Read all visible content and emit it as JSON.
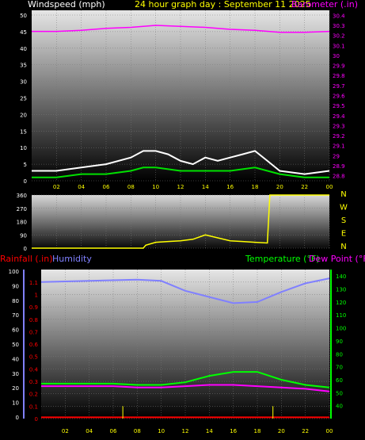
{
  "colors": {
    "wind": "#ffffff",
    "wind_avg": "#00e000",
    "barometer": "#ff00ff",
    "direction": "#ffff00",
    "rain": "#ff0000",
    "humidity": "#8080ff",
    "temperature": "#00ff00",
    "dewpoint": "#ff00ff",
    "axis_yellow": "#ffff00"
  },
  "header": {
    "left_label": "Windspeed (mph)",
    "title": "24 hour graph day : September 11 2025",
    "right_label": "Barometer (.in)"
  },
  "direction_panel": {
    "letters": [
      "N",
      "W",
      "S",
      "E",
      "N"
    ]
  },
  "bottom_header": {
    "rain_label": "Rainfall (.in)",
    "humidity_label": "Humidity",
    "temp_label": "Temperature (°F)",
    "dew_label": "Dew Point (°F)"
  },
  "chart_data": [
    {
      "type": "line",
      "x_ticks": [
        "02",
        "04",
        "06",
        "08",
        "10",
        "12",
        "14",
        "16",
        "18",
        "20",
        "22",
        "00"
      ],
      "left_axis": {
        "ticks": [
          "0",
          "5",
          "10",
          "15",
          "20",
          "25",
          "30",
          "35",
          "40",
          "45",
          "50"
        ],
        "ylim": [
          0,
          50
        ]
      },
      "right_axis": {
        "ticks": [
          "28.8",
          "28.9",
          "29",
          "29.1",
          "29.2",
          "29.3",
          "29.4",
          "29.5",
          "29.6",
          "29.7",
          "29.8",
          "29.9",
          "30",
          "30.1",
          "30.2",
          "30.3",
          "30.4"
        ],
        "ylim": [
          28.75,
          30.45
        ]
      },
      "series": [
        {
          "axis": "right",
          "x": [
            0,
            2,
            4,
            6,
            8,
            10,
            12,
            14,
            16,
            18,
            20,
            22,
            24
          ],
          "values": [
            30.24,
            30.24,
            30.25,
            30.27,
            30.28,
            30.3,
            30.29,
            30.28,
            30.26,
            30.25,
            30.23,
            30.23,
            30.24
          ]
        },
        {
          "axis": "left",
          "x": [
            0,
            2,
            4,
            6,
            8,
            9,
            10,
            11,
            12,
            13,
            14,
            15,
            16,
            17,
            18,
            19,
            20,
            22,
            24
          ],
          "values": [
            3,
            3,
            4,
            5,
            7,
            9,
            9,
            8,
            6,
            5,
            7,
            6,
            7,
            8,
            9,
            6,
            3,
            2,
            3
          ]
        },
        {
          "axis": "left",
          "x": [
            0,
            2,
            4,
            6,
            8,
            9,
            10,
            12,
            14,
            16,
            18,
            20,
            22,
            24
          ],
          "values": [
            1,
            1,
            2,
            2,
            3,
            4,
            4,
            3,
            3,
            3,
            4,
            2,
            1,
            1
          ]
        }
      ]
    },
    {
      "type": "line",
      "x_ticks": [
        "02",
        "04",
        "06",
        "08",
        "10",
        "12",
        "14",
        "16",
        "18",
        "20",
        "22",
        "00"
      ],
      "left_axis": {
        "ticks": [
          "0",
          "90",
          "180",
          "270",
          "360"
        ],
        "ylim": [
          0,
          360
        ]
      },
      "series": [
        {
          "x": [
            0,
            9,
            9.2,
            10,
            11,
            12,
            13,
            14,
            15,
            16,
            17,
            18,
            19,
            19.2,
            24
          ],
          "values": [
            0,
            0,
            20,
            40,
            45,
            50,
            60,
            90,
            70,
            50,
            45,
            40,
            35,
            360,
            360
          ]
        }
      ]
    },
    {
      "type": "line",
      "x_ticks": [
        "02",
        "04",
        "06",
        "08",
        "10",
        "12",
        "14",
        "16",
        "18",
        "20",
        "22",
        "00"
      ],
      "rain_axis": {
        "ticks": [
          "0",
          "0.1",
          "0.2",
          "0.3",
          "0.4",
          "0.5",
          "0.6",
          "0.7",
          "0.8",
          "0.9",
          "1",
          "1.1"
        ],
        "ylim": [
          0,
          1.15
        ]
      },
      "humidity_axis": {
        "ticks": [
          "0",
          "10",
          "20",
          "30",
          "40",
          "50",
          "60",
          "70",
          "80",
          "90",
          "100"
        ]
      },
      "temp_axis": {
        "ticks": [
          "40",
          "50",
          "60",
          "70",
          "80",
          "90",
          "100",
          "110",
          "120",
          "130",
          "140"
        ],
        "ylim": [
          30,
          145
        ]
      },
      "series": [
        {
          "name": "Humidity",
          "axis": "rain",
          "x": [
            0,
            4,
            8,
            10,
            12,
            14,
            16,
            18,
            20,
            22,
            24
          ],
          "values": [
            1.1,
            1.11,
            1.12,
            1.11,
            1.03,
            0.98,
            0.93,
            0.94,
            1.02,
            1.09,
            1.13
          ]
        },
        {
          "name": "Temperature (°F)",
          "axis": "temp",
          "x": [
            0,
            2,
            4,
            6,
            8,
            10,
            12,
            14,
            16,
            18,
            20,
            22,
            24
          ],
          "values": [
            57,
            57,
            57,
            57,
            56,
            56,
            58,
            63,
            66,
            66,
            60,
            56,
            54
          ]
        },
        {
          "name": "Dew Point (°F)",
          "axis": "temp",
          "x": [
            0,
            2,
            4,
            6,
            8,
            10,
            12,
            14,
            16,
            18,
            20,
            22,
            24
          ],
          "values": [
            55,
            55,
            55,
            55,
            54,
            54,
            55,
            56,
            56,
            55,
            54,
            53,
            51
          ]
        },
        {
          "name": "Rainfall (.in)",
          "axis": "rain",
          "x": [
            0,
            24
          ],
          "values": [
            0.01,
            0.01
          ]
        }
      ],
      "rain_marks": [
        {
          "x": 6.8,
          "value": 0.1
        },
        {
          "x": 19.3,
          "value": 0.1
        }
      ]
    }
  ]
}
